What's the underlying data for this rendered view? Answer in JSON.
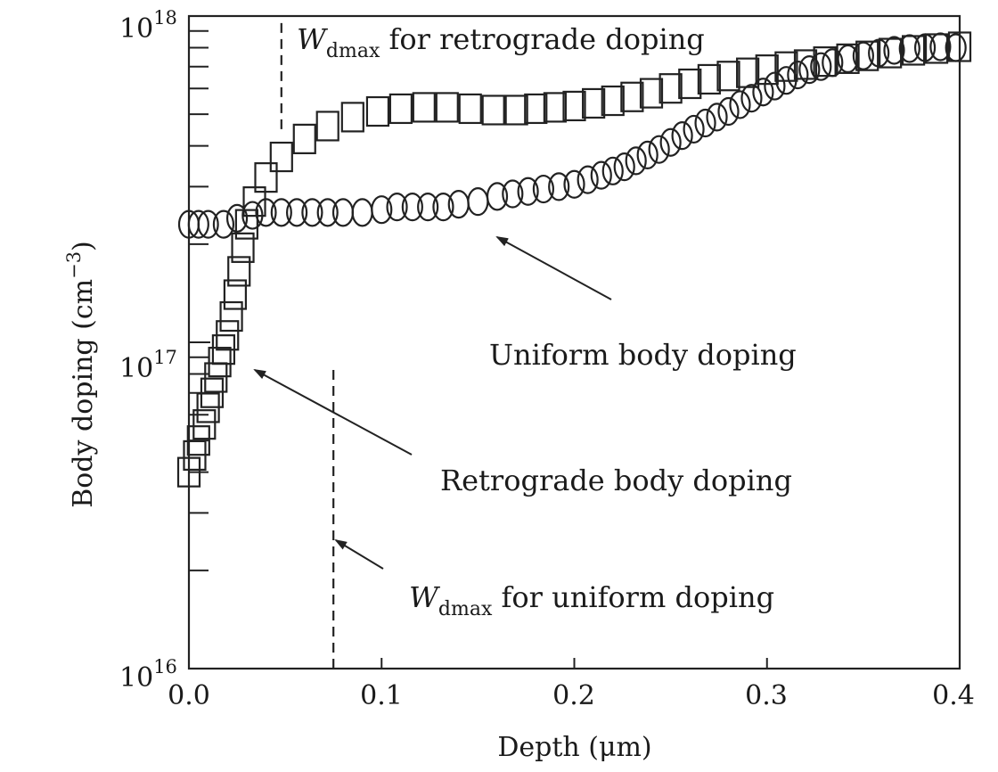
{
  "chart_data": {
    "type": "scatter",
    "xlabel": "Depth (μm)",
    "ylabel": "Body doping (cm",
    "ylabel_exp": "−3",
    "ylabel_close": ")",
    "yscale": "log",
    "xlim": [
      0.0,
      0.4
    ],
    "ylim": [
      1e+16,
      1e+18
    ],
    "x_ticks": [
      0.0,
      0.1,
      0.2,
      0.3,
      0.4
    ],
    "x_tick_labels": [
      "0.0",
      "0.1",
      "0.2",
      "0.3",
      "0.4"
    ],
    "y_ticks": [
      1e+16,
      1e+17,
      1e+18
    ],
    "y_tick_labels": [
      {
        "base": "10",
        "exp": "16"
      },
      {
        "base": "10",
        "exp": "17"
      },
      {
        "base": "10",
        "exp": "18"
      }
    ],
    "grid": false,
    "series": [
      {
        "name": "Uniform body doping",
        "marker": "circle",
        "x": [
          0.0,
          0.005,
          0.01,
          0.018,
          0.025,
          0.033,
          0.04,
          0.048,
          0.056,
          0.064,
          0.072,
          0.08,
          0.09,
          0.1,
          0.108,
          0.116,
          0.124,
          0.132,
          0.14,
          0.15,
          0.16,
          0.168,
          0.176,
          0.184,
          0.192,
          0.2,
          0.207,
          0.214,
          0.22,
          0.226,
          0.232,
          0.238,
          0.244,
          0.25,
          0.256,
          0.262,
          0.268,
          0.274,
          0.28,
          0.286,
          0.292,
          0.298,
          0.304,
          0.31,
          0.316,
          0.322,
          0.328,
          0.334,
          0.342,
          0.35,
          0.358,
          0.366,
          0.374,
          0.382,
          0.39,
          0.398
        ],
        "y": [
          2.3e+17,
          2.3e+17,
          2.3e+17,
          2.3e+17,
          2.4e+17,
          2.45e+17,
          2.5e+17,
          2.5e+17,
          2.5e+17,
          2.5e+17,
          2.5e+17,
          2.5e+17,
          2.5e+17,
          2.55e+17,
          2.6e+17,
          2.6e+17,
          2.6e+17,
          2.6e+17,
          2.65e+17,
          2.7e+17,
          2.8e+17,
          2.85e+17,
          2.9e+17,
          2.95e+17,
          3e+17,
          3.05e+17,
          3.15e+17,
          3.25e+17,
          3.35e+17,
          3.45e+17,
          3.6e+17,
          3.75e+17,
          3.9e+17,
          4.1e+17,
          4.3e+17,
          4.5e+17,
          4.7e+17,
          4.9e+17,
          5.1e+17,
          5.35e+17,
          5.6e+17,
          5.85e+17,
          6.1e+17,
          6.35e+17,
          6.6e+17,
          6.85e+17,
          7e+17,
          7.2e+17,
          7.4e+17,
          7.55e+17,
          7.7e+17,
          7.85e+17,
          7.95e+17,
          8e+17,
          8.05e+17,
          8e+17
        ]
      },
      {
        "name": "Retrograde body doping",
        "marker": "square",
        "x": [
          0.0,
          0.003,
          0.005,
          0.008,
          0.01,
          0.012,
          0.014,
          0.016,
          0.018,
          0.02,
          0.022,
          0.024,
          0.026,
          0.028,
          0.03,
          0.034,
          0.04,
          0.048,
          0.06,
          0.072,
          0.085,
          0.098,
          0.11,
          0.122,
          0.134,
          0.146,
          0.158,
          0.17,
          0.18,
          0.19,
          0.2,
          0.21,
          0.22,
          0.23,
          0.24,
          0.25,
          0.26,
          0.27,
          0.28,
          0.29,
          0.3,
          0.31,
          0.32,
          0.33,
          0.342,
          0.352,
          0.364,
          0.376,
          0.388,
          0.4
        ],
        "y": [
          4e+16,
          4.5e+16,
          5e+16,
          5.6e+16,
          6.3e+16,
          7e+16,
          7.8e+16,
          8.7e+16,
          9.5e+16,
          1.05e+17,
          1.2e+17,
          1.4e+17,
          1.65e+17,
          1.95e+17,
          2.3e+17,
          2.7e+17,
          3.2e+17,
          3.7e+17,
          4.2e+17,
          4.6e+17,
          4.9e+17,
          5.1e+17,
          5.2e+17,
          5.25e+17,
          5.25e+17,
          5.2e+17,
          5.15e+17,
          5.15e+17,
          5.2e+17,
          5.25e+17,
          5.3e+17,
          5.4e+17,
          5.5e+17,
          5.65e+17,
          5.8e+17,
          6e+17,
          6.2e+17,
          6.4e+17,
          6.55e+17,
          6.7e+17,
          6.85e+17,
          7e+17,
          7.1e+17,
          7.25e+17,
          7.4e+17,
          7.55e+17,
          7.7e+17,
          7.85e+17,
          7.95e+17,
          8.05e+17
        ]
      }
    ],
    "annotations": [
      {
        "name": "wdmax-retrograde",
        "text_italic": "W",
        "text_sub": "dmax",
        "text": " for retrograde doping"
      },
      {
        "name": "uniform-body-doping",
        "text": "Uniform body doping"
      },
      {
        "name": "retrograde-body-doping",
        "text": "Retrograde body doping"
      },
      {
        "name": "wdmax-uniform",
        "text_italic": "W",
        "text_sub": "dmax",
        "text": " for uniform doping"
      }
    ],
    "reference_lines": [
      {
        "name": "wdmax-retrograde-line",
        "x": 0.048,
        "y_from": 4.5e+17,
        "y_to": 1e+18
      },
      {
        "name": "wdmax-uniform-line",
        "x": 0.075,
        "y_from": 1e+16,
        "y_to": 8.5e+16
      }
    ]
  }
}
